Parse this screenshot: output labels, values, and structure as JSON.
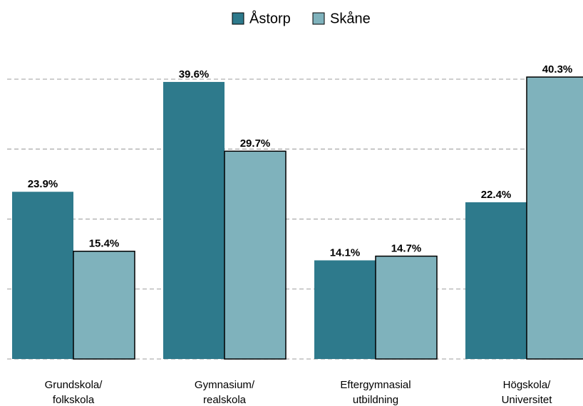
{
  "chart_data": {
    "type": "bar",
    "categories": [
      "Grundskola/\nfolkskola",
      "Gymnasium/\nrealskola",
      "Eftergymnasial\nutbildning",
      "Högskola/\nUniversitet"
    ],
    "series": [
      {
        "name": "Åstorp",
        "color": "#2e7a8c",
        "values": [
          23.9,
          39.6,
          14.1,
          22.4
        ],
        "value_labels": [
          "23.9%",
          "39.6%",
          "14.1%",
          "22.4%"
        ]
      },
      {
        "name": "Skåne",
        "color": "#7fb2bc",
        "values": [
          15.4,
          29.7,
          14.7,
          40.3
        ],
        "value_labels": [
          "15.4%",
          "29.7%",
          "14.7%",
          "40.3%"
        ]
      }
    ],
    "ylim": [
      0,
      45
    ],
    "yticks": [
      0,
      10,
      20,
      30,
      40
    ],
    "grid": true,
    "legend": "top"
  }
}
